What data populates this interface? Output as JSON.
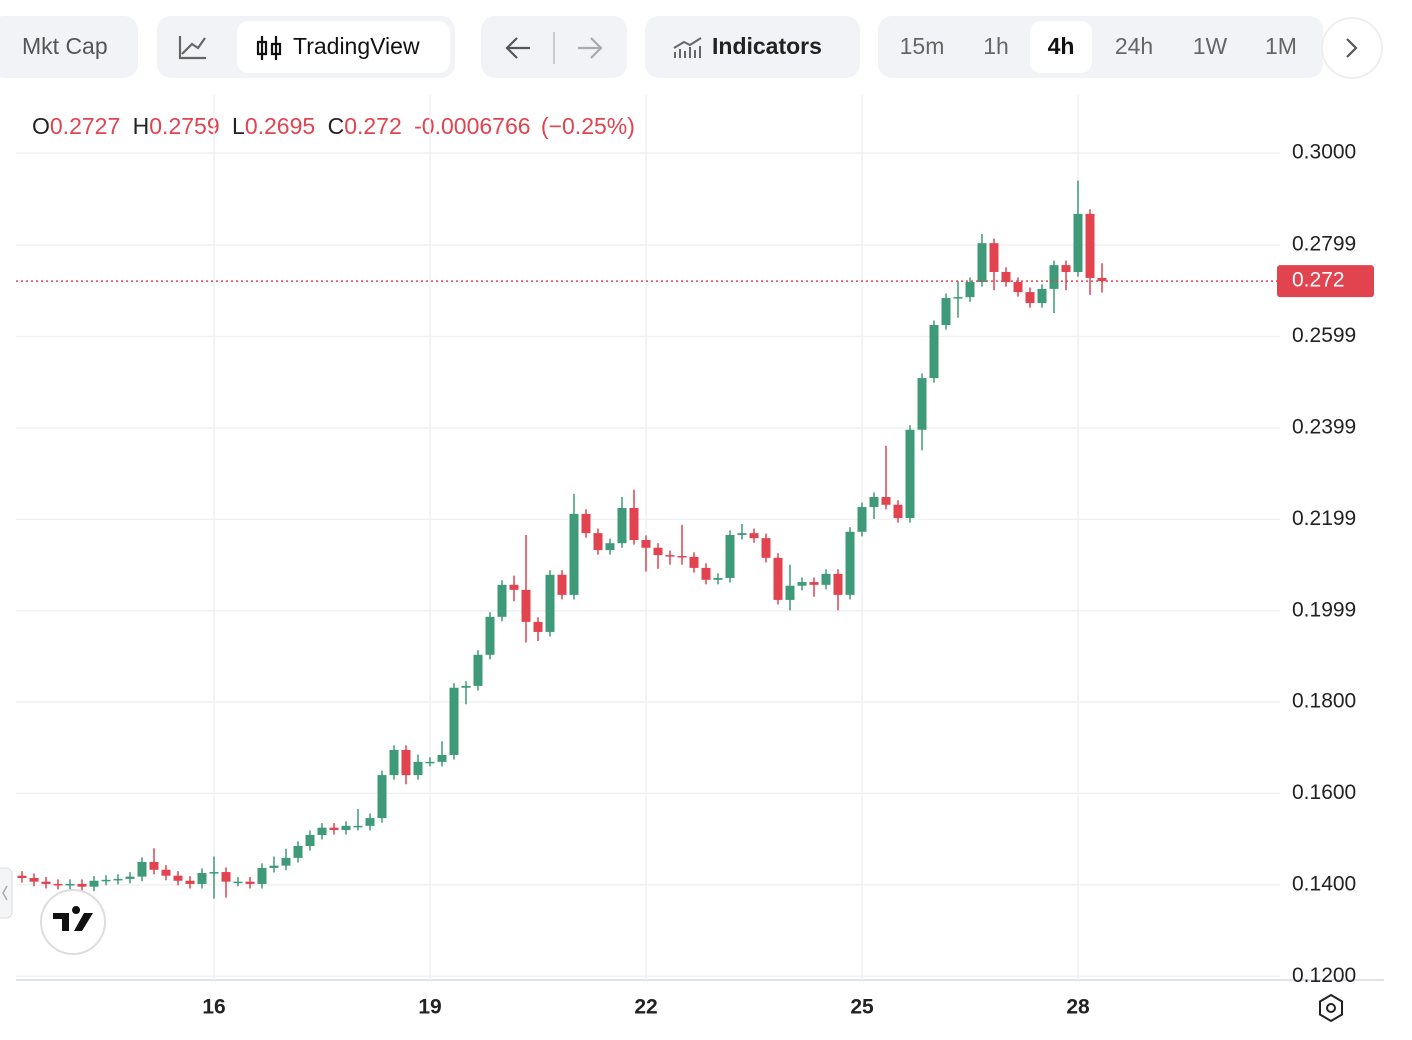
{
  "toolbar": {
    "buttons": [
      "Mkt Cap",
      "TradingView",
      "Indicators"
    ],
    "intervals": [
      "15m",
      "1h",
      "4h",
      "24h",
      "1W",
      "1M"
    ],
    "selected_interval": "4h"
  },
  "chart_data": {
    "type": "candlestick",
    "legend": {
      "labels": [
        "O",
        "H",
        "L",
        "C"
      ],
      "change": "-0.0006766",
      "change_pct": "(−0.25%)"
    },
    "categories": [
      null,
      null,
      null,
      null,
      null,
      null,
      null,
      null,
      null,
      null,
      null,
      null,
      null,
      null,
      null,
      null,
      "16",
      null,
      null,
      null,
      null,
      null,
      null,
      null,
      null,
      null,
      null,
      null,
      null,
      null,
      null,
      null,
      null,
      null,
      "19",
      null,
      null,
      null,
      null,
      null,
      null,
      null,
      null,
      null,
      null,
      null,
      null,
      null,
      null,
      null,
      null,
      null,
      "22",
      null,
      null,
      null,
      null,
      null,
      null,
      null,
      null,
      null,
      null,
      null,
      null,
      null,
      null,
      null,
      null,
      null,
      "25",
      null,
      null,
      null,
      null,
      null,
      null,
      null,
      null,
      null,
      null,
      null,
      null,
      null,
      null,
      null,
      null,
      null,
      "28",
      null,
      null
    ],
    "open": [
      0.142,
      0.1415,
      0.1407,
      0.1402,
      0.14,
      0.1402,
      0.1396,
      0.1409,
      0.1411,
      0.1413,
      0.1418,
      0.145,
      0.1433,
      0.142,
      0.1409,
      0.1402,
      0.1426,
      0.1428,
      0.1407,
      0.1407,
      0.1402,
      0.1437,
      0.1442,
      0.1459,
      0.1485,
      0.1509,
      0.1525,
      0.152,
      0.1529,
      0.1529,
      0.1546,
      0.164,
      0.1695,
      0.164,
      0.1669,
      0.1669,
      0.1684,
      0.1831,
      0.1835,
      0.1903,
      0.1986,
      0.2056,
      0.2045,
      0.1975,
      0.1953,
      0.2078,
      0.2034,
      0.2211,
      0.2169,
      0.2132,
      0.2147,
      0.2224,
      0.2154,
      0.2137,
      0.2121,
      0.2119,
      0.2117,
      0.2093,
      0.2067,
      0.2071,
      0.2165,
      0.2169,
      0.2158,
      0.2115,
      0.2023,
      0.2054,
      0.2062,
      0.2056,
      0.208,
      0.2034,
      0.2172,
      0.2226,
      0.2248,
      0.2231,
      0.2202,
      0.2395,
      0.2508,
      0.2624,
      0.2683,
      0.2685,
      0.2718,
      0.2803,
      0.274,
      0.2718,
      0.2696,
      0.2672,
      0.2703,
      0.2755,
      0.274,
      0.2867,
      0.2727
    ],
    "high": [
      0.143,
      0.1425,
      0.1417,
      0.1412,
      0.1412,
      0.1412,
      0.1419,
      0.1421,
      0.1423,
      0.1428,
      0.146,
      0.148,
      0.1443,
      0.143,
      0.1419,
      0.1436,
      0.1462,
      0.1438,
      0.1417,
      0.1417,
      0.1447,
      0.1462,
      0.1479,
      0.1495,
      0.1519,
      0.1535,
      0.1535,
      0.1539,
      0.1566,
      0.1556,
      0.165,
      0.1705,
      0.1705,
      0.1685,
      0.1679,
      0.1714,
      0.1841,
      0.1845,
      0.1913,
      0.1996,
      0.2066,
      0.2076,
      0.2165,
      0.1985,
      0.2088,
      0.2088,
      0.2255,
      0.2221,
      0.2179,
      0.2157,
      0.2248,
      0.2264,
      0.2164,
      0.2147,
      0.2131,
      0.2187,
      0.2127,
      0.2103,
      0.2081,
      0.2175,
      0.2189,
      0.2179,
      0.2168,
      0.2125,
      0.21,
      0.2072,
      0.2072,
      0.209,
      0.209,
      0.2182,
      0.2236,
      0.2258,
      0.236,
      0.2241,
      0.2405,
      0.2518,
      0.2634,
      0.2693,
      0.272,
      0.2728,
      0.2823,
      0.2813,
      0.275,
      0.2728,
      0.2706,
      0.2713,
      0.2765,
      0.2765,
      0.294,
      0.2877,
      0.2759
    ],
    "low": [
      0.1405,
      0.1397,
      0.1392,
      0.139,
      0.139,
      0.1386,
      0.1386,
      0.1399,
      0.1401,
      0.1403,
      0.1408,
      0.1423,
      0.141,
      0.1399,
      0.1392,
      0.1392,
      0.137,
      0.1372,
      0.1397,
      0.1392,
      0.1392,
      0.1427,
      0.1432,
      0.1449,
      0.1475,
      0.1499,
      0.151,
      0.151,
      0.1519,
      0.1519,
      0.1536,
      0.163,
      0.162,
      0.163,
      0.1659,
      0.1659,
      0.1674,
      0.1795,
      0.1825,
      0.1893,
      0.1976,
      0.202,
      0.193,
      0.1933,
      0.1943,
      0.2024,
      0.2024,
      0.2159,
      0.2122,
      0.2122,
      0.2137,
      0.2144,
      0.2085,
      0.2091,
      0.21,
      0.21,
      0.2083,
      0.2057,
      0.2057,
      0.2061,
      0.2155,
      0.2148,
      0.2105,
      0.2013,
      0.2,
      0.2044,
      0.203,
      0.2046,
      0.2,
      0.2024,
      0.2162,
      0.22,
      0.2221,
      0.2192,
      0.2192,
      0.235,
      0.2498,
      0.2614,
      0.264,
      0.2675,
      0.2708,
      0.27,
      0.2708,
      0.2686,
      0.2662,
      0.2662,
      0.265,
      0.27,
      0.273,
      0.269,
      0.2695
    ],
    "close": [
      0.1415,
      0.1407,
      0.1402,
      0.14,
      0.1402,
      0.1396,
      0.1409,
      0.1411,
      0.1413,
      0.1418,
      0.145,
      0.1433,
      0.142,
      0.1409,
      0.1402,
      0.1426,
      0.1428,
      0.1407,
      0.1407,
      0.1402,
      0.1437,
      0.1442,
      0.1459,
      0.1485,
      0.1509,
      0.1525,
      0.152,
      0.1529,
      0.1529,
      0.1546,
      0.164,
      0.1695,
      0.164,
      0.1669,
      0.1669,
      0.1684,
      0.1831,
      0.1835,
      0.1903,
      0.1986,
      0.2056,
      0.2045,
      0.1975,
      0.1953,
      0.2078,
      0.2034,
      0.2211,
      0.2169,
      0.2132,
      0.2147,
      0.2224,
      0.2154,
      0.2137,
      0.2121,
      0.2119,
      0.2117,
      0.2093,
      0.2067,
      0.2071,
      0.2165,
      0.2169,
      0.2158,
      0.2115,
      0.2023,
      0.2054,
      0.2062,
      0.2056,
      0.208,
      0.2034,
      0.2172,
      0.2226,
      0.2248,
      0.2231,
      0.2202,
      0.2395,
      0.2508,
      0.2624,
      0.2683,
      0.2685,
      0.2718,
      0.2803,
      0.274,
      0.2718,
      0.2696,
      0.2672,
      0.2703,
      0.2755,
      0.274,
      0.2867,
      0.2727,
      0.272
    ],
    "up_color": "#3e9a78",
    "down_color": "#e1434f",
    "ylim": [
      0.1192,
      0.3116
    ],
    "yticks": [
      {
        "value": 0.3,
        "label": "0.3000"
      },
      {
        "value": 0.2799,
        "label": "0.2799"
      },
      {
        "value": 0.2599,
        "label": "0.2599"
      },
      {
        "value": 0.2399,
        "label": "0.2399"
      },
      {
        "value": 0.2199,
        "label": "0.2199"
      },
      {
        "value": 0.1999,
        "label": "0.1999"
      },
      {
        "value": 0.18,
        "label": "0.1800"
      },
      {
        "value": 0.16,
        "label": "0.1600"
      },
      {
        "value": 0.14,
        "label": "0.1400"
      },
      {
        "value": 0.12,
        "label": "0.1200"
      }
    ],
    "grid": true
  }
}
